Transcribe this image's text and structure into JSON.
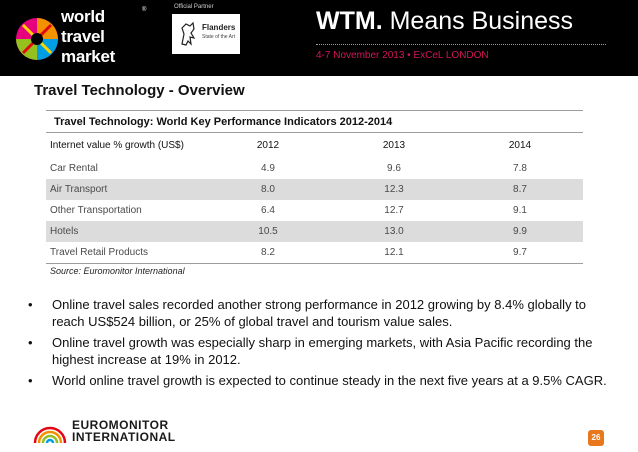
{
  "header": {
    "logo_lines": [
      "world",
      "travel",
      "market"
    ],
    "partner_label": "Official Partner",
    "partner_name": "Flanders",
    "partner_subtitle": "State of the Art",
    "tagline_bold": "WTM.",
    "tagline_rest": " Means Business",
    "event_date": "4-7 November 2013 • ExCeL LONDON",
    "logo_colors": [
      "#e6007e",
      "#f39200",
      "#ffd500",
      "#009fe3",
      "#95c11f",
      "#e30613"
    ]
  },
  "slide": {
    "title": "Travel Technology - Overview"
  },
  "table": {
    "caption": "Travel Technology: World Key Performance Indicators 2012-2014",
    "header_label": "Internet value % growth (US$)",
    "years": [
      "2012",
      "2013",
      "2014"
    ],
    "rows": [
      {
        "label": "Car Rental",
        "values": [
          "4.9",
          "9.6",
          "7.8"
        ]
      },
      {
        "label": "Air Transport",
        "values": [
          "8.0",
          "12.3",
          "8.7"
        ]
      },
      {
        "label": "Other Transportation",
        "values": [
          "6.4",
          "12.7",
          "9.1"
        ]
      },
      {
        "label": "Hotels",
        "values": [
          "10.5",
          "13.0",
          "9.9"
        ]
      },
      {
        "label": "Travel Retail Products",
        "values": [
          "8.2",
          "12.1",
          "9.7"
        ]
      }
    ],
    "source": "Source: Euromonitor International"
  },
  "bullets": [
    "Online travel sales recorded another strong performance in 2012 growing by 8.4% globally to reach US$524 billion, or 25% of global travel and tourism value sales.",
    "Online travel growth was especially sharp in emerging markets, with Asia Pacific recording the highest increase at 19% in 2012.",
    "World online travel growth is expected to continue steady in the next five years at a 9.5% CAGR."
  ],
  "bullet_symbol": "•",
  "footer": {
    "brand_line1": "EUROMONITOR",
    "brand_line2": "INTERNATIONAL",
    "page_number": "26",
    "accent": "#e8781e"
  }
}
